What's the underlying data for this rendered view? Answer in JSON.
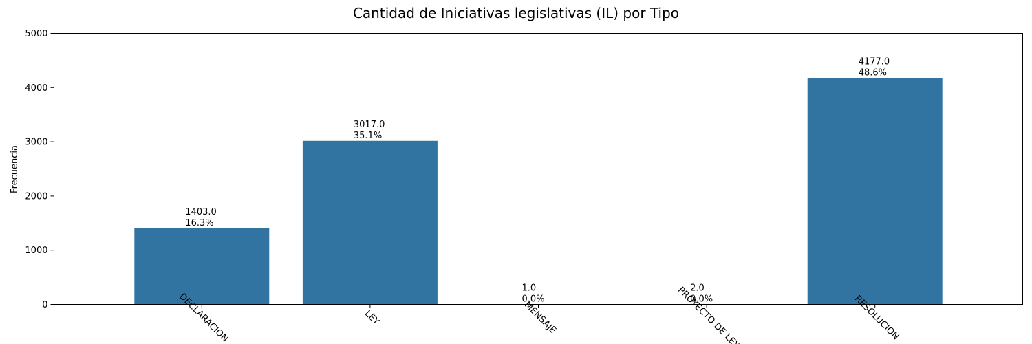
{
  "chart_data": {
    "type": "bar",
    "title": "Cantidad de Iniciativas legislativas (IL) por Tipo",
    "xlabel": "",
    "ylabel": "Frecuencia",
    "categories": [
      "DECLARACION",
      "LEY",
      "MENSAJE",
      "PROYECTO DE LEY",
      "RESOLUCION"
    ],
    "values": [
      1403.0,
      3017.0,
      1.0,
      2.0,
      4177.0
    ],
    "value_labels": [
      "1403.0",
      "3017.0",
      "1.0",
      "2.0",
      "4177.0"
    ],
    "percent_labels": [
      "16.3%",
      "35.1%",
      "0.0%",
      "0.0%",
      "48.6%"
    ],
    "ylim": [
      0,
      5000
    ],
    "yticks": [
      0,
      1000,
      2000,
      3000,
      4000,
      5000
    ],
    "ytick_labels": [
      "0",
      "1000",
      "2000",
      "3000",
      "4000",
      "5000"
    ],
    "grid": false,
    "legend": "none",
    "colors": {
      "bar": "#3274a1",
      "axis": "#000000"
    }
  }
}
